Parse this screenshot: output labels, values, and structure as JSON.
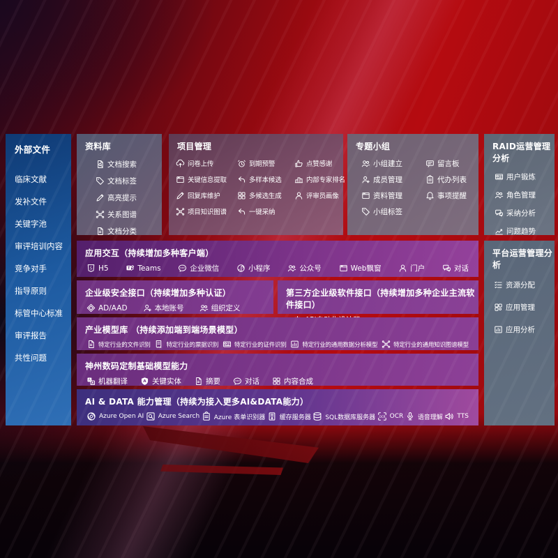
{
  "colors": {
    "screen_red": "#a30a10",
    "sidebar_blue": "#1d5aa0",
    "panel_slate": "#646e7d",
    "panel_mauve": "#7c4e68",
    "panel_gray_mauve": "#7e6d7e",
    "row_purple": "#7c3389",
    "row_indigo": "#3c2f7d",
    "text": "#ffffff"
  },
  "sidebar": {
    "title": "外部文件",
    "items": [
      "临床文献",
      "发补文件",
      "关键字池",
      "审评培训内容",
      "竞争对手",
      "指导原则",
      "标管中心标准",
      "审评报告",
      "共性问题"
    ]
  },
  "library": {
    "title": "资料库",
    "items": [
      {
        "label": "文档搜索",
        "icon": "doc-search-icon",
        "glyph": "doc-search"
      },
      {
        "label": "文档标签",
        "icon": "doc-tag-icon",
        "glyph": "tag"
      },
      {
        "label": "高亮提示",
        "icon": "highlight-pen-icon",
        "glyph": "pencil"
      },
      {
        "label": "关系图谱",
        "icon": "relation-graph-icon",
        "glyph": "graph"
      },
      {
        "label": "文档分类",
        "icon": "doc-category-icon",
        "glyph": "doc"
      }
    ]
  },
  "project": {
    "title": "项目管理",
    "items": [
      {
        "label": "问卷上传",
        "icon": "cloud-upload-icon",
        "glyph": "cloud-up"
      },
      {
        "label": "关键信息提取",
        "icon": "info-extract-icon",
        "glyph": "window"
      },
      {
        "label": "回复库维护",
        "icon": "reply-repo-maintain-icon",
        "glyph": "pencil"
      },
      {
        "label": "项目知识图谱",
        "icon": "project-knowledge-graph-icon",
        "glyph": "graph"
      },
      {
        "label": "到期预警",
        "icon": "due-alarm-icon",
        "glyph": "alarm"
      },
      {
        "label": "多样本候选",
        "icon": "multi-sample-icon",
        "glyph": "reply"
      },
      {
        "label": "多候选生成",
        "icon": "multi-candidate-icon",
        "glyph": "grid"
      },
      {
        "label": "一键采纳",
        "icon": "one-click-adopt-icon",
        "glyph": "reply"
      },
      {
        "label": "点赞感谢",
        "icon": "thumbs-up-icon",
        "glyph": "thumb"
      },
      {
        "label": "内部专家排名",
        "icon": "expert-ranking-icon",
        "glyph": "podium"
      },
      {
        "label": "评审员画像",
        "icon": "reviewer-profile-icon",
        "glyph": "person"
      }
    ]
  },
  "group": {
    "title": "专题小组",
    "items": [
      {
        "label": "小组建立",
        "icon": "group-create-icon",
        "glyph": "people"
      },
      {
        "label": "成员管理",
        "icon": "member-manage-icon",
        "glyph": "person-add"
      },
      {
        "label": "资料管理",
        "icon": "material-manage-icon",
        "glyph": "window"
      },
      {
        "label": "小组标签",
        "icon": "group-tag-icon",
        "glyph": "tag"
      },
      {
        "label": "留言板",
        "icon": "bbs-board-icon",
        "glyph": "bbs"
      },
      {
        "label": "代办列表",
        "icon": "todo-list-icon",
        "glyph": "clipboard"
      },
      {
        "label": "事项提醒",
        "icon": "reminder-bell-icon",
        "glyph": "bell"
      }
    ]
  },
  "raid": {
    "title": "RAID运营管理分析",
    "items": [
      {
        "label": "用户锻炼",
        "icon": "user-card-icon",
        "glyph": "id-card"
      },
      {
        "label": "角色管理",
        "icon": "role-manage-icon",
        "glyph": "people"
      },
      {
        "label": "采纳分析",
        "icon": "adoption-analysis-icon",
        "glyph": "chat-qa"
      },
      {
        "label": "问题趋势",
        "icon": "issue-trend-icon",
        "glyph": "trend"
      }
    ]
  },
  "platform": {
    "title": "平台运营管理分析",
    "items": [
      {
        "label": "资源分配",
        "icon": "resource-allocation-icon",
        "glyph": "checklist"
      },
      {
        "label": "应用管理",
        "icon": "app-manage-icon",
        "glyph": "apps"
      },
      {
        "label": "应用分析",
        "icon": "app-analysis-icon",
        "glyph": "chart-box"
      }
    ]
  },
  "interaction": {
    "title": "应用交互（持续增加多种客户端）",
    "items": [
      {
        "label": "H5",
        "icon": "html5-icon",
        "glyph": "html5"
      },
      {
        "label": "Teams",
        "icon": "teams-icon",
        "glyph": "teams"
      },
      {
        "label": "企业微信",
        "icon": "wework-chat-icon",
        "glyph": "chat-round"
      },
      {
        "label": "小程序",
        "icon": "miniprogram-icon",
        "glyph": "mini"
      },
      {
        "label": "公众号",
        "icon": "official-account-icon",
        "glyph": "people"
      },
      {
        "label": "Web飘窗",
        "icon": "web-window-icon",
        "glyph": "window"
      },
      {
        "label": "门户",
        "icon": "portal-icon",
        "glyph": "person"
      },
      {
        "label": "对话",
        "icon": "dialog-icon",
        "glyph": "chat-qa"
      }
    ]
  },
  "security": {
    "title": "企业级安全接口（持续增加多种认证）",
    "items": [
      {
        "label": "AD/AAD",
        "icon": "ad-aad-icon",
        "glyph": "diamond"
      },
      {
        "label": "本地账号",
        "icon": "local-account-icon",
        "glyph": "person-add"
      },
      {
        "label": "组织定义",
        "icon": "org-define-icon",
        "glyph": "people"
      }
    ]
  },
  "thirdparty": {
    "title": "第三方企业级软件接口（持续增加多种企业主流软件接口）",
    "items": [
      {
        "label": "API自动化设计器",
        "icon": "api-designer-gear-icon",
        "glyph": "gear"
      }
    ]
  },
  "industry": {
    "title": "产业模型库 （持续添加端到端场景模型）",
    "items": [
      {
        "label": "特定行业的文件识别",
        "icon": "industry-file-ocr-icon",
        "glyph": "doc"
      },
      {
        "label": "特定行业的票据识别",
        "icon": "industry-receipt-ocr-icon",
        "glyph": "receipt"
      },
      {
        "label": "特定行业的证件识别",
        "icon": "industry-id-ocr-icon",
        "glyph": "id-card"
      },
      {
        "label": "特定行业的通用数据分析模型",
        "icon": "industry-data-model-icon",
        "glyph": "chart-box"
      },
      {
        "label": "特定行业的通用知识图谱模型",
        "icon": "industry-knowledge-graph-icon",
        "glyph": "graph"
      }
    ]
  },
  "basemodel": {
    "title": "神州数码定制基础模型能力",
    "items": [
      {
        "label": "机器翻译",
        "icon": "machine-translate-icon",
        "glyph": "translate"
      },
      {
        "label": "关键实体",
        "icon": "key-entity-icon",
        "glyph": "shield-a"
      },
      {
        "label": "摘要",
        "icon": "summary-doc-icon",
        "glyph": "doc"
      },
      {
        "label": "对话",
        "icon": "dialog-bubble-icon",
        "glyph": "chat-round"
      },
      {
        "label": "内容合成",
        "icon": "content-compose-icon",
        "glyph": "grid"
      }
    ]
  },
  "aidata": {
    "title": "AI & DATA 能力管理（持续为接入更多AI&DATA能力）",
    "items": [
      {
        "label": "Azure Open AI",
        "icon": "openai-icon",
        "glyph": "openai"
      },
      {
        "label": "Azure Search",
        "icon": "azure-search-icon",
        "glyph": "search-box"
      },
      {
        "label": "Azure 表单识别器",
        "icon": "form-recognizer-icon",
        "glyph": "clipboard"
      },
      {
        "label": "缓存服务器",
        "icon": "cache-server-icon",
        "glyph": "server"
      },
      {
        "label": "SQL数据库服务器",
        "icon": "sql-database-icon",
        "glyph": "database"
      },
      {
        "label": "OCR",
        "icon": "ocr-icon",
        "glyph": "ocr"
      },
      {
        "label": "语音理解",
        "icon": "speech-understanding-icon",
        "glyph": "mic"
      },
      {
        "label": "TTS",
        "icon": "tts-speaker-icon",
        "glyph": "speaker"
      }
    ]
  }
}
